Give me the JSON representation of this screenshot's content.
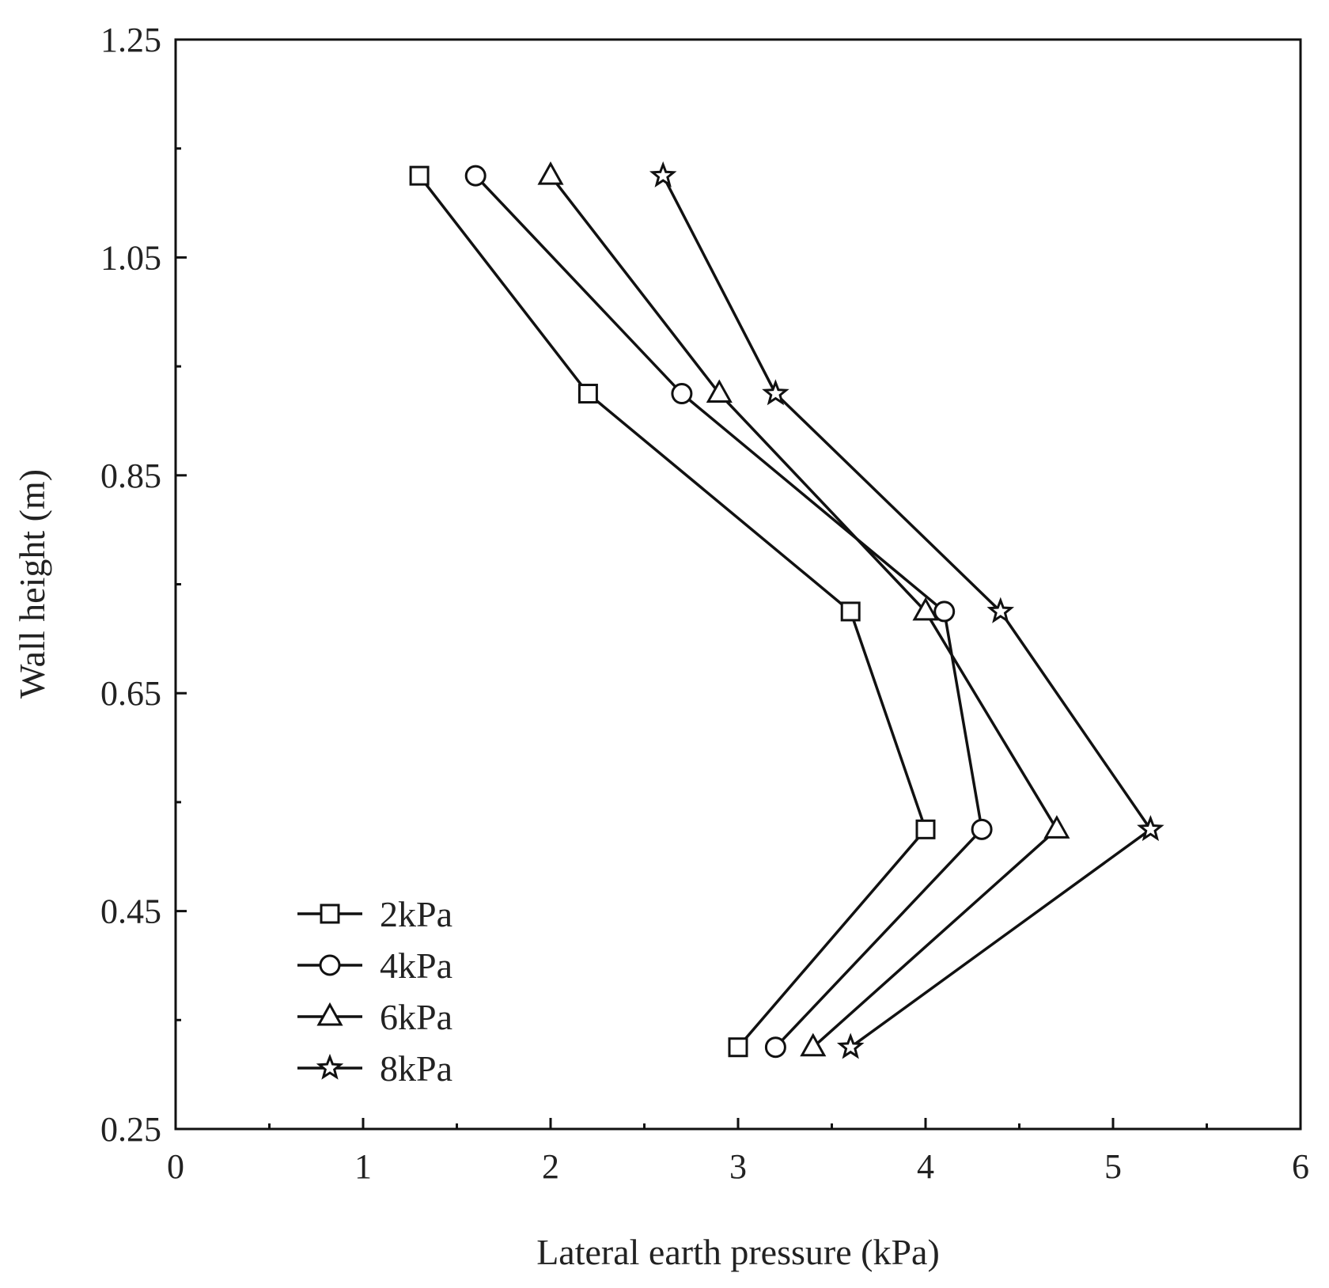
{
  "chart_data": {
    "type": "line",
    "xlabel": "Lateral earth pressure (kPa)",
    "ylabel": "Wall height (m)",
    "xlim": [
      0,
      6
    ],
    "ylim": [
      0.25,
      1.25
    ],
    "x_ticks": [
      "0",
      "1",
      "2",
      "3",
      "4",
      "5",
      "6"
    ],
    "y_ticks": [
      "0.25",
      "0.45",
      "0.65",
      "0.85",
      "1.05",
      "1.25"
    ],
    "grid": false,
    "legend_position": "bottom-left",
    "y": [
      1.125,
      0.925,
      0.725,
      0.525,
      0.325
    ],
    "series": [
      {
        "name": "2kPa",
        "marker": "square",
        "x": [
          1.3,
          2.2,
          3.6,
          4.0,
          3.0
        ]
      },
      {
        "name": "4kPa",
        "marker": "circle",
        "x": [
          1.6,
          2.7,
          4.1,
          4.3,
          3.2
        ]
      },
      {
        "name": "6kPa",
        "marker": "triangle",
        "x": [
          2.0,
          2.9,
          4.0,
          4.7,
          3.4
        ]
      },
      {
        "name": "8kPa",
        "marker": "star",
        "x": [
          2.6,
          3.2,
          4.4,
          5.2,
          3.6
        ]
      }
    ],
    "colors": {
      "line": "#111111",
      "marker_fill": "#ffffff"
    }
  }
}
